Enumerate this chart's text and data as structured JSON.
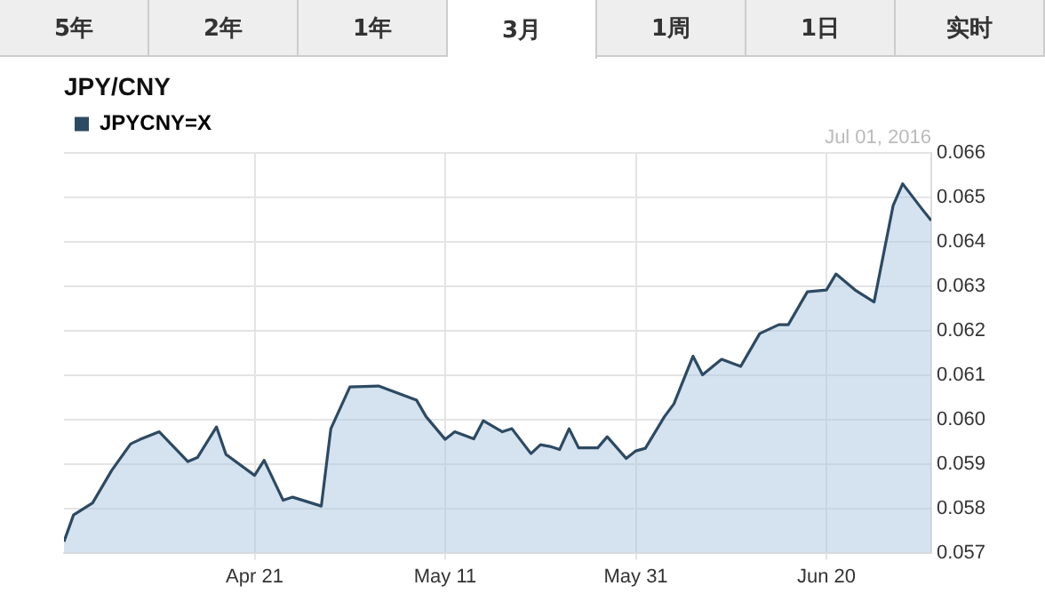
{
  "chart_data": {
    "type": "area",
    "title": "JPY/CNY",
    "annotations": [
      "5年",
      "2年",
      "1年",
      "3月",
      "1周",
      "1日",
      "实时",
      "Jul 01, 2016"
    ],
    "x": [
      "2016-04-01",
      "2016-04-02",
      "2016-04-04",
      "2016-04-06",
      "2016-04-08",
      "2016-04-09",
      "2016-04-11",
      "2016-04-14",
      "2016-04-15",
      "2016-04-17",
      "2016-04-18",
      "2016-04-21",
      "2016-04-22",
      "2016-04-24",
      "2016-04-25",
      "2016-04-28",
      "2016-04-29",
      "2016-05-01",
      "2016-05-04",
      "2016-05-08",
      "2016-05-09",
      "2016-05-11",
      "2016-05-12",
      "2016-05-14",
      "2016-05-15",
      "2016-05-17",
      "2016-05-18",
      "2016-05-20",
      "2016-05-21",
      "2016-05-22",
      "2016-05-23",
      "2016-05-24",
      "2016-05-25",
      "2016-05-27",
      "2016-05-28",
      "2016-05-30",
      "2016-05-31",
      "2016-06-01",
      "2016-06-03",
      "2016-06-04",
      "2016-06-06",
      "2016-06-07",
      "2016-06-09",
      "2016-06-11",
      "2016-06-13",
      "2016-06-15",
      "2016-06-16",
      "2016-06-18",
      "2016-06-20",
      "2016-06-21",
      "2016-06-23",
      "2016-06-25",
      "2016-06-27",
      "2016-06-28",
      "2016-06-30",
      "2016-07-01"
    ],
    "series": [
      {
        "name": "JPYCNY=X",
        "color": "#2d4a63",
        "values": [
          0.05725,
          0.05785,
          0.05812,
          0.05885,
          0.05945,
          0.05955,
          0.05972,
          0.05905,
          0.05914,
          0.05983,
          0.05921,
          0.05874,
          0.05908,
          0.05818,
          0.05825,
          0.05805,
          0.05979,
          0.06073,
          0.06075,
          0.06043,
          0.06006,
          0.05955,
          0.05972,
          0.05956,
          0.05997,
          0.05972,
          0.05979,
          0.05923,
          0.05943,
          0.05939,
          0.05932,
          0.05979,
          0.05936,
          0.05936,
          0.05961,
          0.05912,
          0.05929,
          0.05935,
          0.06006,
          0.06035,
          0.06142,
          0.061,
          0.06135,
          0.06119,
          0.06193,
          0.06213,
          0.06213,
          0.06287,
          0.06291,
          0.06327,
          0.06291,
          0.06264,
          0.06481,
          0.0653,
          0.06474,
          0.06447
        ]
      }
    ],
    "xlim": [
      "2016-04-01",
      "2016-07-01"
    ],
    "xticks": [
      {
        "value": "2016-04-21",
        "label": "Apr 21"
      },
      {
        "value": "2016-05-11",
        "label": "May 11"
      },
      {
        "value": "2016-05-31",
        "label": "May 31"
      },
      {
        "value": "2016-06-20",
        "label": "Jun 20"
      }
    ],
    "ylim": [
      0.057,
      0.066
    ],
    "yticks": [
      0.057,
      0.058,
      0.059,
      {
        "value": 0.06,
        "label": "0.060"
      },
      0.061,
      0.062,
      0.063,
      0.064,
      0.065,
      0.066
    ],
    "grid": true,
    "legend": "top left",
    "marker": "none",
    "line_style": "solid"
  }
}
